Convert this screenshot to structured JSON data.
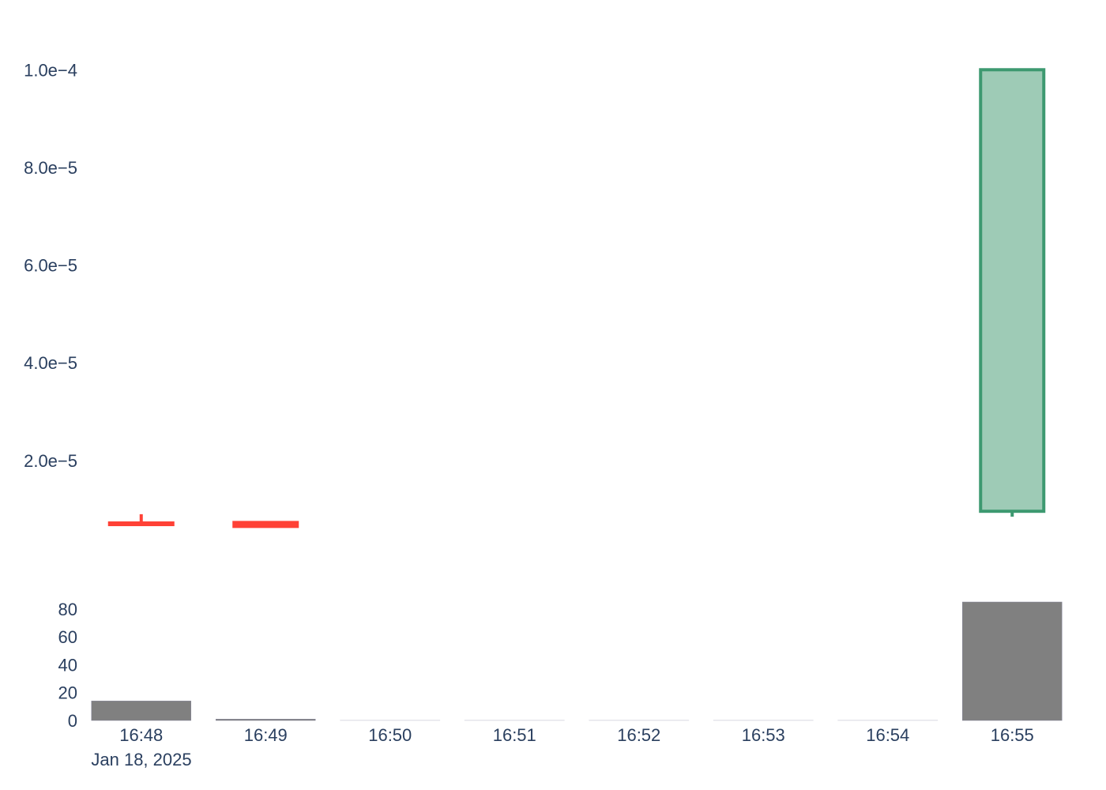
{
  "chart_data": [
    {
      "type": "candlestick",
      "panel": "price",
      "x": [
        "16:48",
        "16:49",
        "16:50",
        "16:51",
        "16:52",
        "16:53",
        "16:54",
        "16:55"
      ],
      "x_date_label": "Jan 18, 2025",
      "candles": [
        {
          "x": "16:48",
          "open": 7.2e-06,
          "high": 9e-06,
          "low": 7e-06,
          "close": 7e-06
        },
        {
          "x": "16:49",
          "open": 7.3e-06,
          "high": 7.3e-06,
          "low": 6.5e-06,
          "close": 6.5e-06
        },
        {
          "x": "16:55",
          "open": 9.6e-06,
          "high": 0.0001,
          "low": 8.5e-06,
          "close": 0.0001
        }
      ],
      "y_tick_labels": [
        "2.0e−5",
        "4.0e−5",
        "6.0e−5",
        "8.0e−5",
        "1.0e−4"
      ],
      "y_ticks": [
        2e-05,
        4e-05,
        6e-05,
        8e-05,
        0.0001
      ],
      "ylim": [
        5.1e-06,
        0.000107
      ],
      "colors": {
        "increasing": "#3d9970",
        "increasing_fill": "#9ecbb6",
        "decreasing": "#ff4136"
      }
    },
    {
      "type": "bar",
      "panel": "volume",
      "categories": [
        "16:48",
        "16:49",
        "16:50",
        "16:51",
        "16:52",
        "16:53",
        "16:54",
        "16:55"
      ],
      "values": [
        14,
        1,
        0,
        0,
        0,
        0,
        0,
        85
      ],
      "y_tick_labels": [
        "0",
        "20",
        "40",
        "60",
        "80"
      ],
      "y_ticks": [
        0,
        20,
        40,
        60,
        80
      ],
      "ylim": [
        0,
        85
      ],
      "color": "#808080"
    }
  ]
}
